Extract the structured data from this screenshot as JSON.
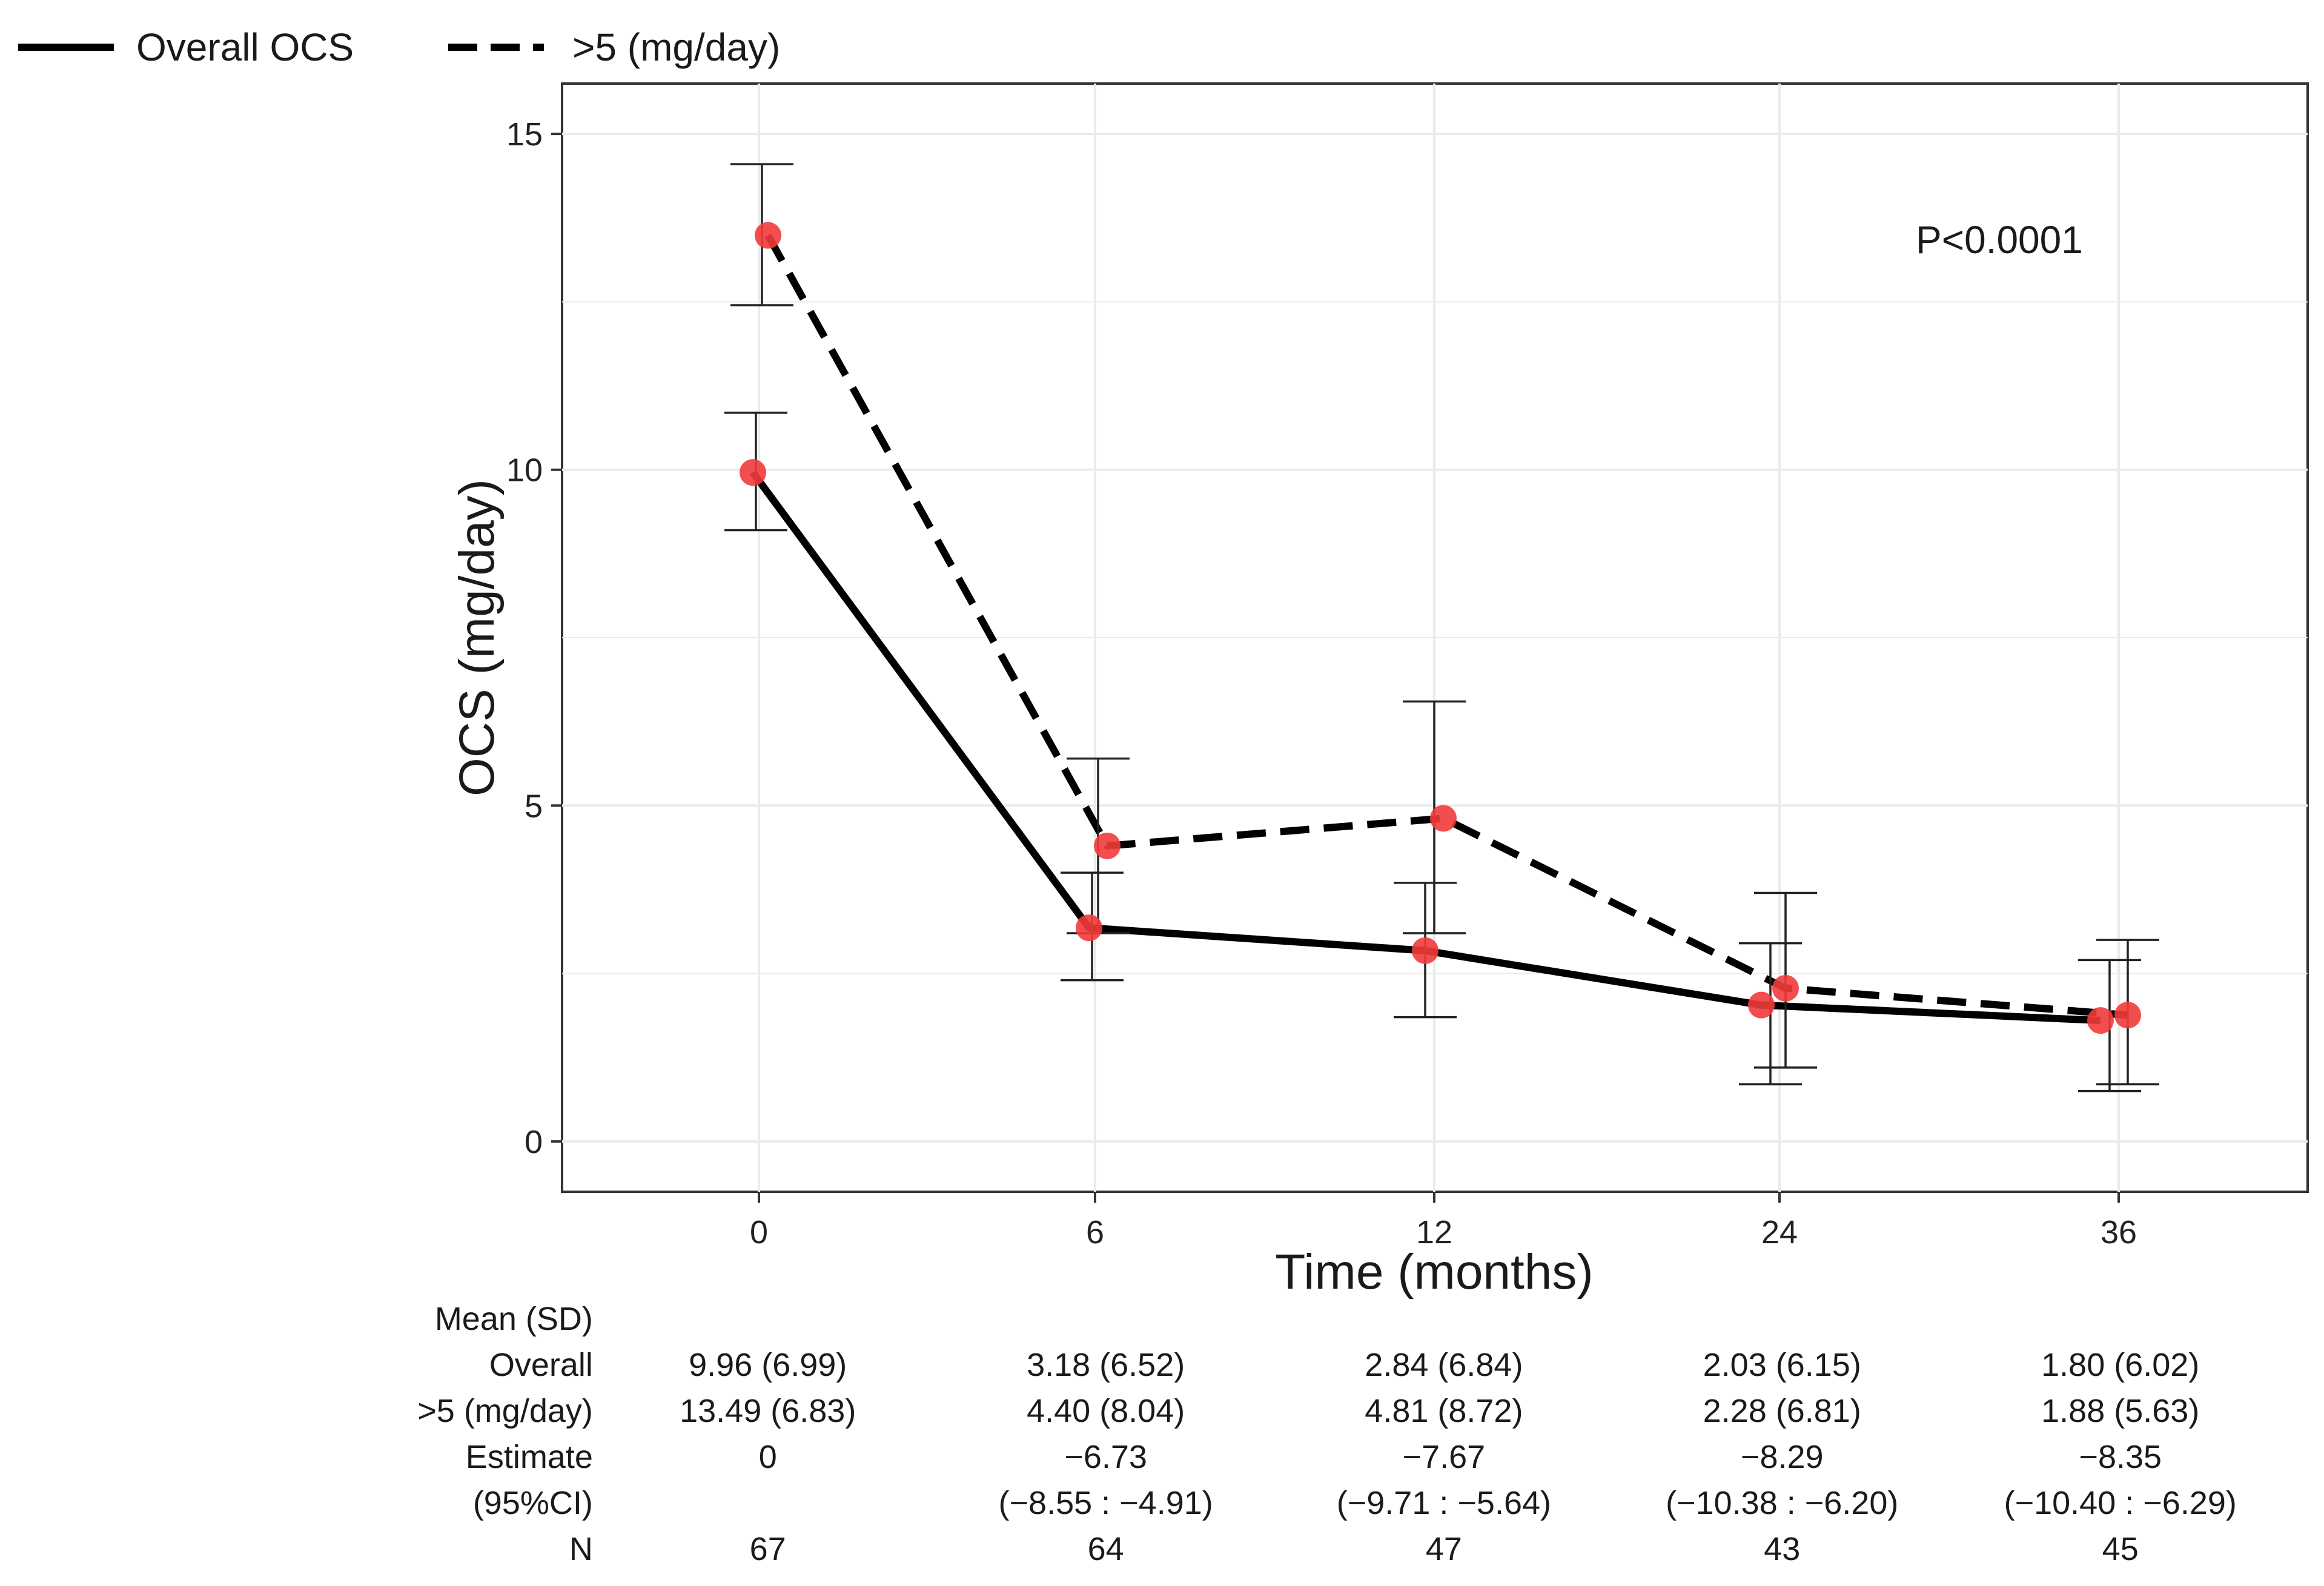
{
  "chart_data": {
    "type": "line",
    "title": "",
    "xlabel": "Time (months)",
    "ylabel": "OCS (mg/day)",
    "x_categories": [
      "0",
      "6",
      "12",
      "24",
      "36"
    ],
    "ylim": [
      -0.75,
      15.75
    ],
    "yticks": [
      0,
      5,
      10,
      15
    ],
    "grid": true,
    "legend_position": "top-left",
    "annotation": "P<0.0001",
    "series": [
      {
        "name": "Overall OCS",
        "line_style": "solid",
        "values": [
          9.96,
          3.18,
          2.84,
          2.03,
          1.8
        ],
        "err_low": [
          9.1,
          2.4,
          1.85,
          0.85,
          0.75
        ],
        "err_high": [
          10.85,
          4.0,
          3.85,
          2.95,
          2.7
        ]
      },
      {
        "name": ">5 (mg/day)",
        "line_style": "dashed",
        "values": [
          13.49,
          4.4,
          4.81,
          2.28,
          1.88
        ],
        "err_low": [
          12.45,
          3.1,
          3.1,
          1.1,
          0.85
        ],
        "err_high": [
          14.55,
          5.7,
          6.55,
          3.7,
          3.0
        ]
      }
    ]
  },
  "colors": {
    "point": "#f23b3b",
    "line": "#000000",
    "grid": "#ebebeb",
    "panel_border": "#333333"
  },
  "table": {
    "header": "Mean (SD)",
    "rows": [
      {
        "label": "Overall",
        "values": [
          "9.96 (6.99)",
          "3.18 (6.52)",
          "2.84 (6.84)",
          "2.03 (6.15)",
          "1.80 (6.02)"
        ]
      },
      {
        "label": ">5 (mg/day)",
        "values": [
          "13.49 (6.83)",
          "4.40 (8.04)",
          "4.81 (8.72)",
          "2.28 (6.81)",
          "1.88 (5.63)"
        ]
      },
      {
        "label": "Estimate",
        "values": [
          "0",
          "−6.73",
          "−7.67",
          "−8.29",
          "−8.35"
        ]
      },
      {
        "label": "(95%CI)",
        "values": [
          "",
          "(−8.55 : −4.91)",
          "(−9.71 : −5.64)",
          "(−10.38 : −6.20)",
          "(−10.40 : −6.29)"
        ]
      },
      {
        "label": "N",
        "values": [
          "67",
          "64",
          "47",
          "43",
          "45"
        ]
      }
    ]
  }
}
